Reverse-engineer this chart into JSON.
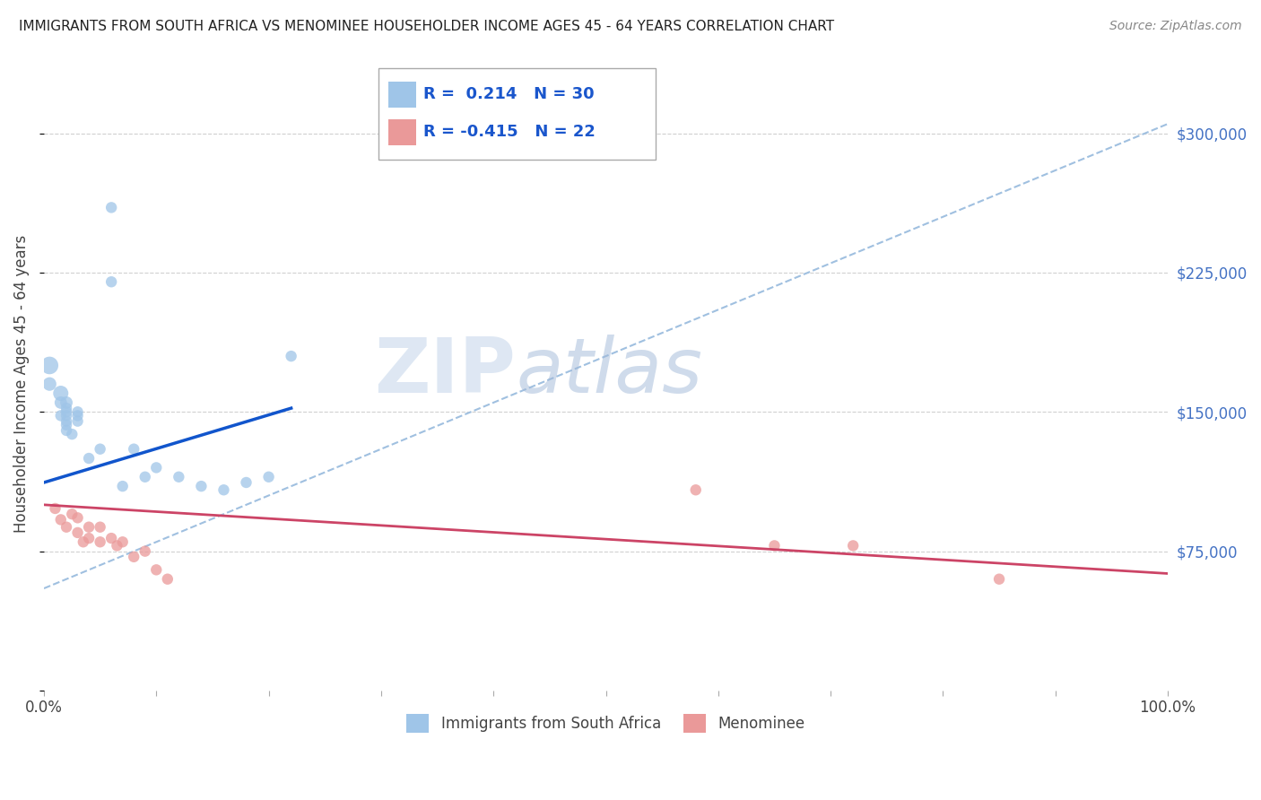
{
  "title": "IMMIGRANTS FROM SOUTH AFRICA VS MENOMINEE HOUSEHOLDER INCOME AGES 45 - 64 YEARS CORRELATION CHART",
  "source": "Source: ZipAtlas.com",
  "ylabel": "Householder Income Ages 45 - 64 years",
  "x_min": 0,
  "x_max": 1.0,
  "y_min": 0,
  "y_max": 330000,
  "ytick_values": [
    0,
    75000,
    150000,
    225000,
    300000
  ],
  "ytick_labels": [
    "",
    "$75,000",
    "$150,000",
    "$225,000",
    "$300,000"
  ],
  "xtick_values": [
    0.0,
    0.1,
    0.2,
    0.3,
    0.4,
    0.5,
    0.6,
    0.7,
    0.8,
    0.9,
    1.0
  ],
  "xtick_labels": [
    "0.0%",
    "",
    "",
    "",
    "",
    "",
    "",
    "",
    "",
    "",
    "100.0%"
  ],
  "blue_R": 0.214,
  "blue_N": 30,
  "pink_R": -0.415,
  "pink_N": 22,
  "blue_color": "#9fc5e8",
  "pink_color": "#ea9999",
  "blue_line_color": "#1155cc",
  "pink_line_color": "#cc4466",
  "dash_line_color": "#a0c0e0",
  "background_color": "#ffffff",
  "watermark_zip": "ZIP",
  "watermark_atlas": "atlas",
  "blue_scatter_x": [
    0.005,
    0.005,
    0.015,
    0.015,
    0.015,
    0.02,
    0.02,
    0.02,
    0.02,
    0.02,
    0.02,
    0.02,
    0.025,
    0.03,
    0.03,
    0.03,
    0.04,
    0.05,
    0.06,
    0.06,
    0.07,
    0.08,
    0.09,
    0.1,
    0.12,
    0.14,
    0.16,
    0.18,
    0.2,
    0.22
  ],
  "blue_scatter_y": [
    175000,
    165000,
    160000,
    155000,
    148000,
    155000,
    152000,
    150000,
    148000,
    145000,
    143000,
    140000,
    138000,
    150000,
    148000,
    145000,
    125000,
    130000,
    260000,
    220000,
    110000,
    130000,
    115000,
    120000,
    115000,
    110000,
    108000,
    112000,
    115000,
    180000
  ],
  "blue_scatter_sizes": [
    200,
    120,
    150,
    100,
    80,
    100,
    80,
    80,
    80,
    80,
    80,
    80,
    80,
    80,
    80,
    80,
    80,
    80,
    80,
    80,
    80,
    80,
    80,
    80,
    80,
    80,
    80,
    80,
    80,
    80
  ],
  "pink_scatter_x": [
    0.01,
    0.015,
    0.02,
    0.025,
    0.03,
    0.03,
    0.035,
    0.04,
    0.04,
    0.05,
    0.05,
    0.06,
    0.065,
    0.07,
    0.08,
    0.09,
    0.1,
    0.11,
    0.58,
    0.65,
    0.72,
    0.85
  ],
  "pink_scatter_y": [
    98000,
    92000,
    88000,
    95000,
    93000,
    85000,
    80000,
    88000,
    82000,
    88000,
    80000,
    82000,
    78000,
    80000,
    72000,
    75000,
    65000,
    60000,
    108000,
    78000,
    78000,
    60000
  ],
  "pink_scatter_sizes": [
    80,
    80,
    80,
    80,
    80,
    80,
    80,
    80,
    80,
    80,
    80,
    80,
    80,
    80,
    80,
    80,
    80,
    80,
    80,
    80,
    80,
    80
  ],
  "blue_trend_x": [
    0.0,
    0.22
  ],
  "blue_trend_y": [
    112000,
    152000
  ],
  "pink_trend_x": [
    0.0,
    1.0
  ],
  "pink_trend_y": [
    100000,
    63000
  ],
  "dash_trend_x": [
    0.0,
    1.0
  ],
  "dash_trend_y": [
    55000,
    305000
  ]
}
